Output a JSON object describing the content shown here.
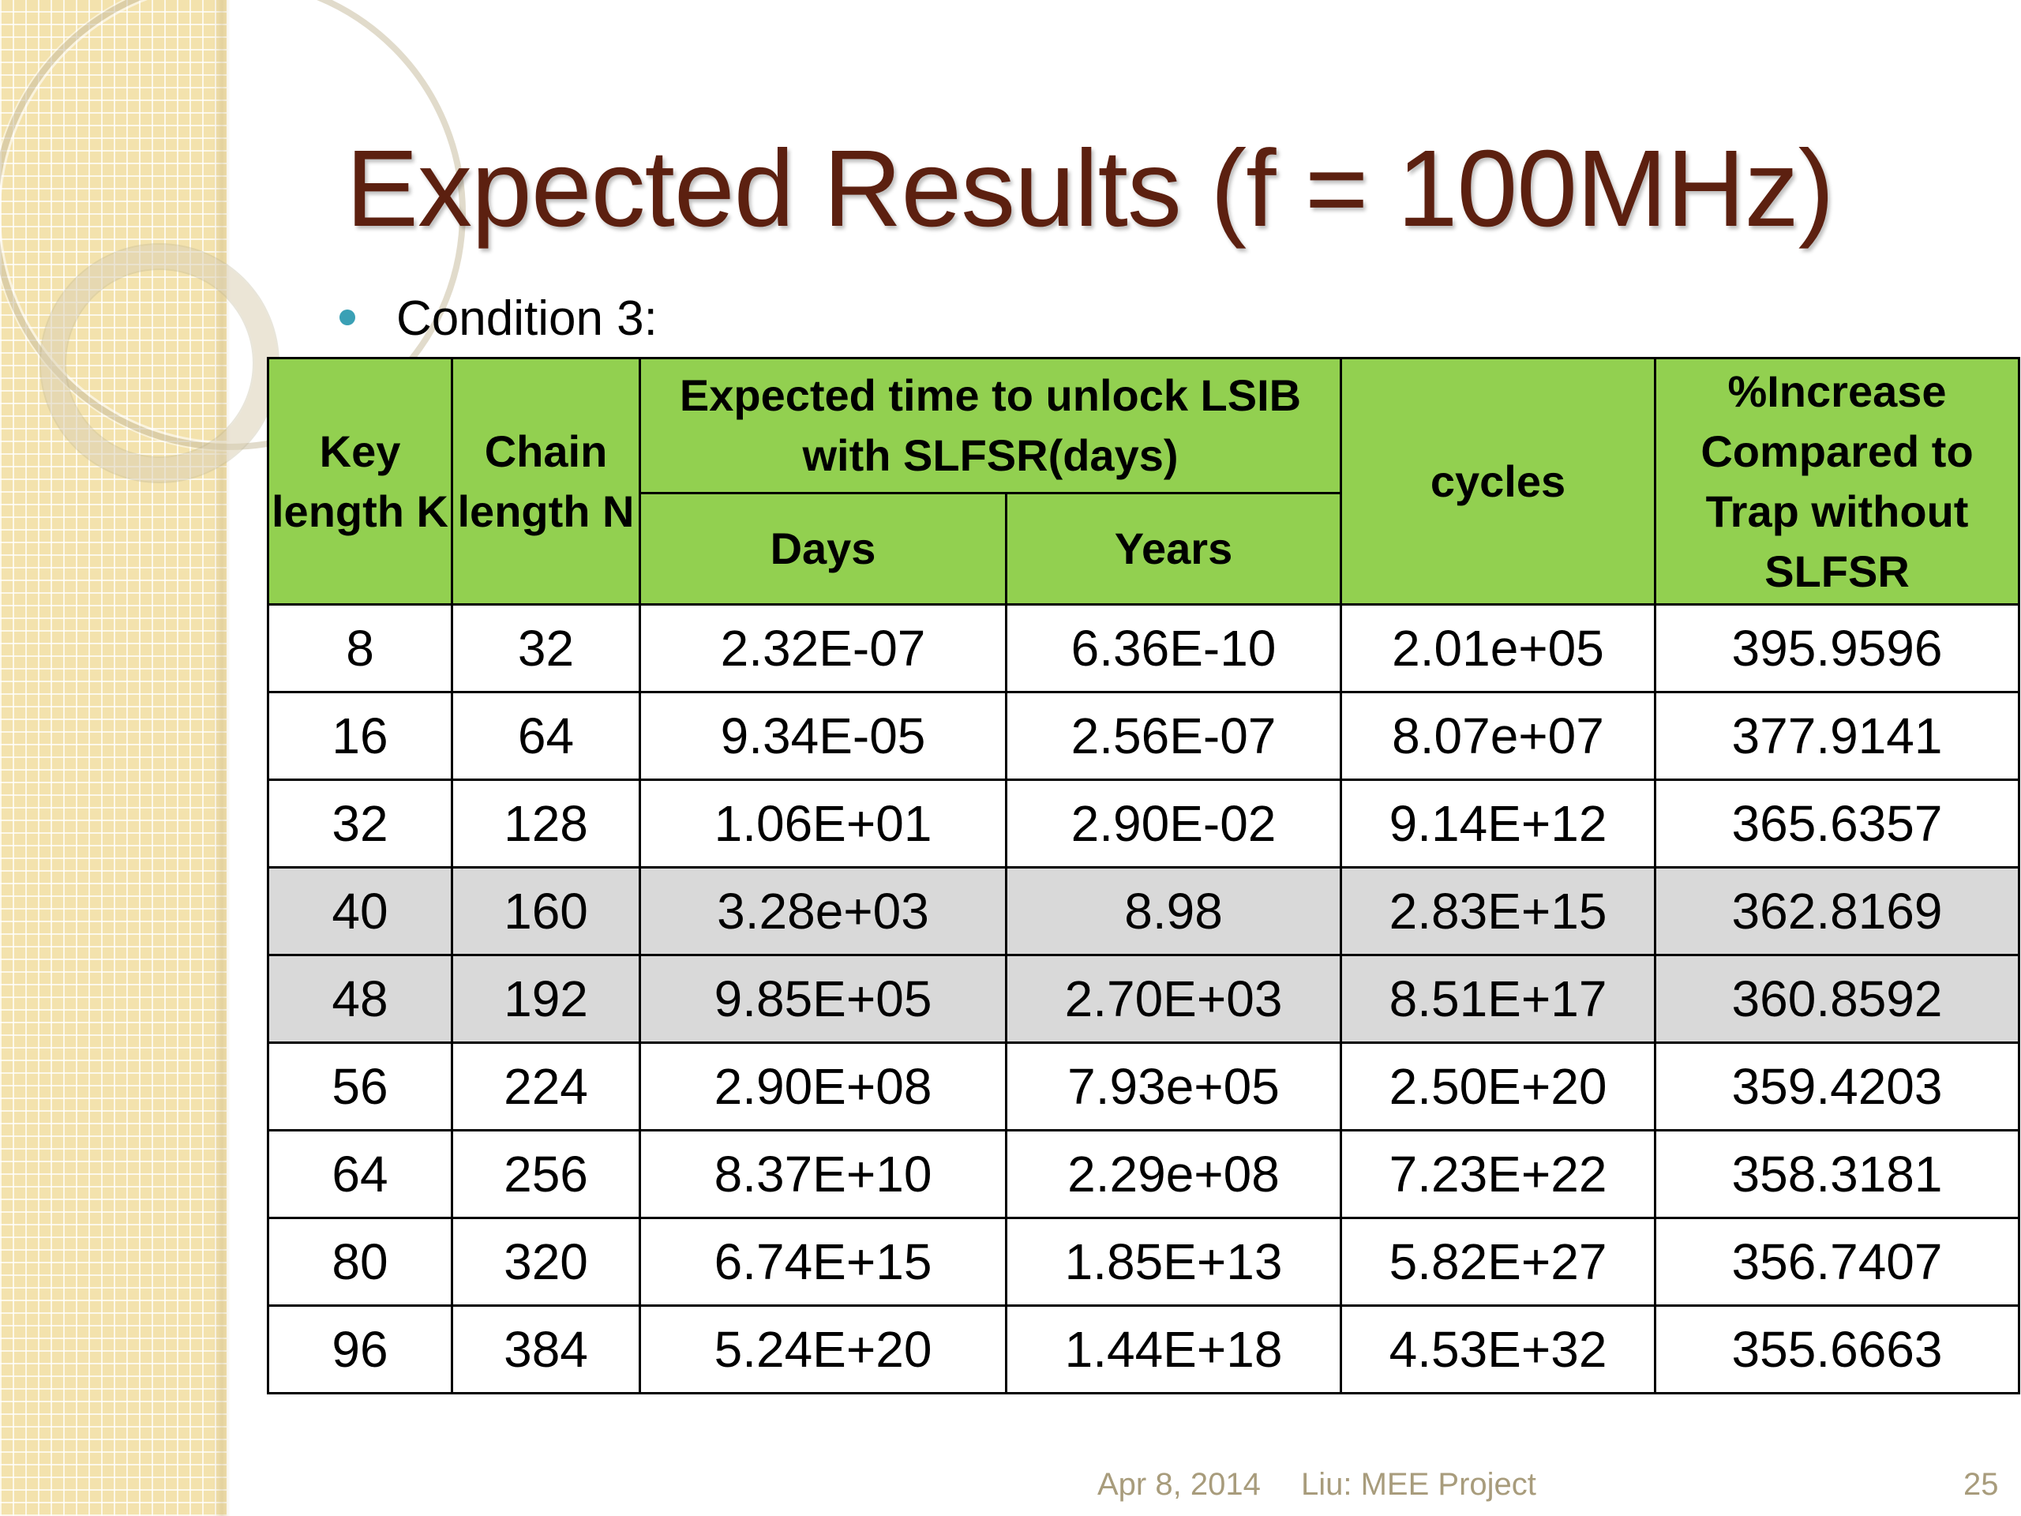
{
  "slide": {
    "title": "Expected Results (f = 100MHz)",
    "bullet": "Condition 3:",
    "colors": {
      "title": "#5c2010",
      "header_fill": "#92d050",
      "highlight_fill": "#d9d9d9",
      "bullet": "#3aa0b5",
      "footer_text": "#a89c7c"
    }
  },
  "table": {
    "headers": {
      "key_length": "Key length K",
      "chain_length": "Chain length N",
      "expected_time": "Expected time to unlock LSIB with SLFSR(days)",
      "days": "Days",
      "years": "Years",
      "cycles": "cycles",
      "increase": "%Increase Compared to Trap without SLFSR"
    },
    "rows": [
      [
        "8",
        "32",
        "2.32E-07",
        "6.36E-10",
        "2.01e+05",
        "395.9596"
      ],
      [
        "16",
        "64",
        "9.34E-05",
        "2.56E-07",
        "8.07e+07",
        "377.9141"
      ],
      [
        "32",
        "128",
        "1.06E+01",
        "2.90E-02",
        "9.14E+12",
        "365.6357"
      ],
      [
        "40",
        "160",
        "3.28e+03",
        "8.98",
        "2.83E+15",
        "362.8169"
      ],
      [
        "48",
        "192",
        "9.85E+05",
        "2.70E+03",
        "8.51E+17",
        "360.8592"
      ],
      [
        "56",
        "224",
        "2.90E+08",
        "7.93e+05",
        "2.50E+20",
        "359.4203"
      ],
      [
        "64",
        "256",
        "8.37E+10",
        "2.29e+08",
        "7.23E+22",
        "358.3181"
      ],
      [
        "80",
        "320",
        "6.74E+15",
        "1.85E+13",
        "5.82E+27",
        "356.7407"
      ],
      [
        "96",
        "384",
        "5.24E+20",
        "1.44E+18",
        "4.53E+32",
        "355.6663"
      ]
    ],
    "highlighted_rows": [
      3,
      4
    ]
  },
  "footer": {
    "date": "Apr 8, 2014",
    "author": "Liu: MEE Project",
    "page": "25"
  }
}
